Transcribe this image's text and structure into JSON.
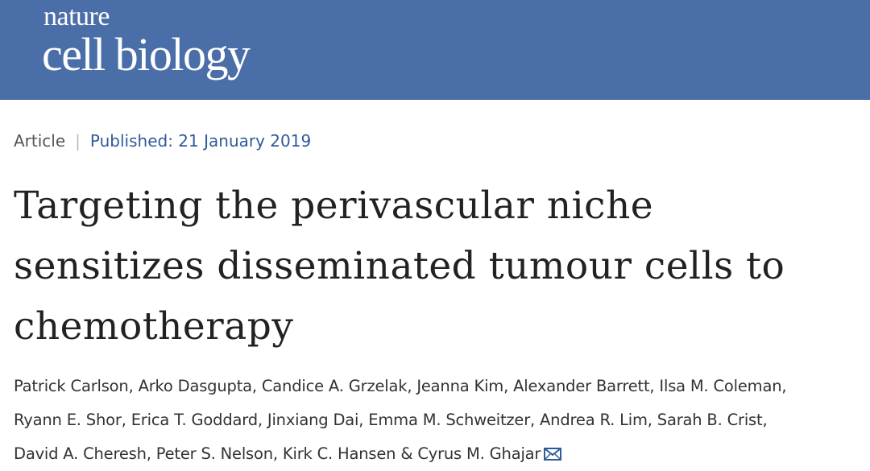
{
  "header": {
    "logo_top": "nature",
    "logo_bottom": "cell biology"
  },
  "article": {
    "type": "Article",
    "published": "Published: 21 January 2019",
    "title_lines": [
      "Targeting the perivascular niche",
      "sensitizes disseminated tumour cells to",
      "chemotherapy"
    ],
    "author_lines": [
      "Patrick Carlson, Arko Dasgupta, Candice A. Grzelak, Jeanna Kim, Alexander Barrett, Ilsa M. Coleman,",
      "Ryann E. Shor, Erica T. Goddard, Jinxiang Dai, Emma M. Schweitzer, Andrea R. Lim, Sarah B. Crist,",
      "David A. Cheresh, Peter S. Nelson, Kirk C. Hansen & Cyrus M. Ghajar"
    ]
  }
}
